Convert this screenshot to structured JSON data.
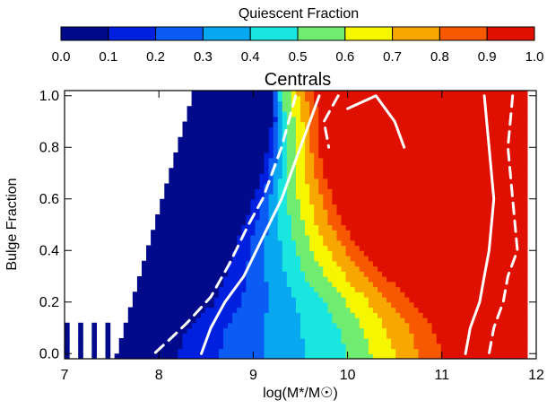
{
  "colorbar": {
    "title": "Quiescent Fraction",
    "ticks": [
      "0.0",
      "0.1",
      "0.2",
      "0.3",
      "0.4",
      "0.5",
      "0.6",
      "0.7",
      "0.8",
      "0.9",
      "1.0"
    ],
    "colors": [
      "#000a8a",
      "#0020e0",
      "#0a5cf5",
      "#08a8f0",
      "#1ae6e0",
      "#70ec70",
      "#f6f600",
      "#f8a600",
      "#f85800",
      "#e01000",
      "#b80000"
    ]
  },
  "chart_data": {
    "type": "heatmap",
    "title": "Centrals",
    "xlabel": "log(M*/M☉)",
    "ylabel": "Bulge Fraction",
    "xlim": [
      7,
      12
    ],
    "ylim": [
      -0.02,
      1.02
    ],
    "x_ticks": [
      "7",
      "8",
      "9",
      "10",
      "11",
      "12"
    ],
    "y_ticks": [
      "0.0",
      "0.2",
      "0.4",
      "0.6",
      "0.8",
      "1.0"
    ],
    "x_tick_values": [
      7,
      8,
      9,
      10,
      11,
      12
    ],
    "y_tick_values": [
      0.0,
      0.2,
      0.4,
      0.6,
      0.8,
      1.0
    ],
    "color_levels": [
      0.0,
      0.1,
      0.2,
      0.3,
      0.4,
      0.5,
      0.6,
      0.7,
      0.8,
      0.9,
      1.0
    ],
    "fraction_profile": {
      "bulge_fraction": [
        0.0,
        0.1,
        0.2,
        0.3,
        0.4,
        0.5,
        0.6,
        0.7,
        0.8,
        0.9,
        1.0
      ],
      "logM_at_0.1": [
        8.2,
        8.3,
        8.6,
        8.7,
        8.8,
        8.9,
        9.0,
        9.1,
        9.15,
        9.2,
        9.2
      ],
      "logM_at_0.5": [
        10.0,
        9.9,
        9.75,
        9.55,
        9.45,
        9.4,
        9.35,
        9.35,
        9.35,
        9.35,
        9.3
      ],
      "logM_at_0.9": [
        11.0,
        10.9,
        10.7,
        10.4,
        10.15,
        9.95,
        9.85,
        9.75,
        9.7,
        9.7,
        9.65
      ]
    },
    "contours": [
      {
        "style": "solid",
        "x": [
          9.7,
          9.5,
          9.3,
          9.1,
          8.9,
          8.7,
          8.55,
          8.45
        ],
        "y": [
          1.0,
          0.8,
          0.6,
          0.45,
          0.3,
          0.2,
          0.1,
          0.0
        ]
      },
      {
        "style": "dashed",
        "x": [
          9.45,
          9.3,
          9.1,
          8.95,
          8.75,
          8.55,
          8.3,
          8.1,
          7.95
        ],
        "y": [
          1.0,
          0.8,
          0.6,
          0.5,
          0.35,
          0.22,
          0.12,
          0.05,
          0.0
        ]
      },
      {
        "style": "solid",
        "x": [
          11.45,
          11.5,
          11.55,
          11.5,
          11.45,
          11.4,
          11.3,
          11.25
        ],
        "y": [
          1.0,
          0.8,
          0.6,
          0.4,
          0.3,
          0.2,
          0.1,
          0.0
        ]
      },
      {
        "style": "dashed",
        "x": [
          11.75,
          11.7,
          11.75,
          11.8,
          11.7,
          11.65,
          11.55,
          11.5
        ],
        "y": [
          1.0,
          0.8,
          0.6,
          0.4,
          0.3,
          0.2,
          0.1,
          0.0
        ]
      },
      {
        "style": "solid",
        "x": [
          10.0,
          10.3,
          10.5,
          10.6
        ],
        "y": [
          0.95,
          1.0,
          0.9,
          0.8
        ]
      },
      {
        "style": "dashed",
        "x": [
          9.9,
          9.75,
          9.8
        ],
        "y": [
          1.0,
          0.9,
          0.8
        ]
      }
    ],
    "grid": false
  }
}
